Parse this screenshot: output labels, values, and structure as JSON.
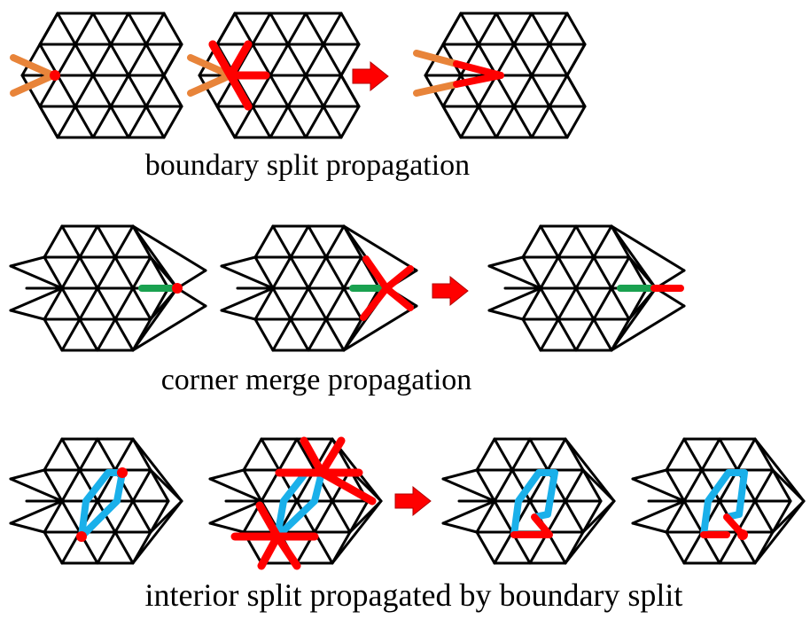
{
  "captions": {
    "row1": "boundary split propagation",
    "row2": "corner merge propagation",
    "row3": "interior split propagated by boundary split"
  },
  "colors": {
    "mesh": "#000000",
    "split": "#ff0000",
    "boundary_edge": "#e8843a",
    "merge_edge": "#1aa150",
    "interior_path": "#1ab0ea",
    "arrow": "#ff0000",
    "vertex": "#ff0000"
  },
  "icons": [
    "arrow-right-icon"
  ]
}
